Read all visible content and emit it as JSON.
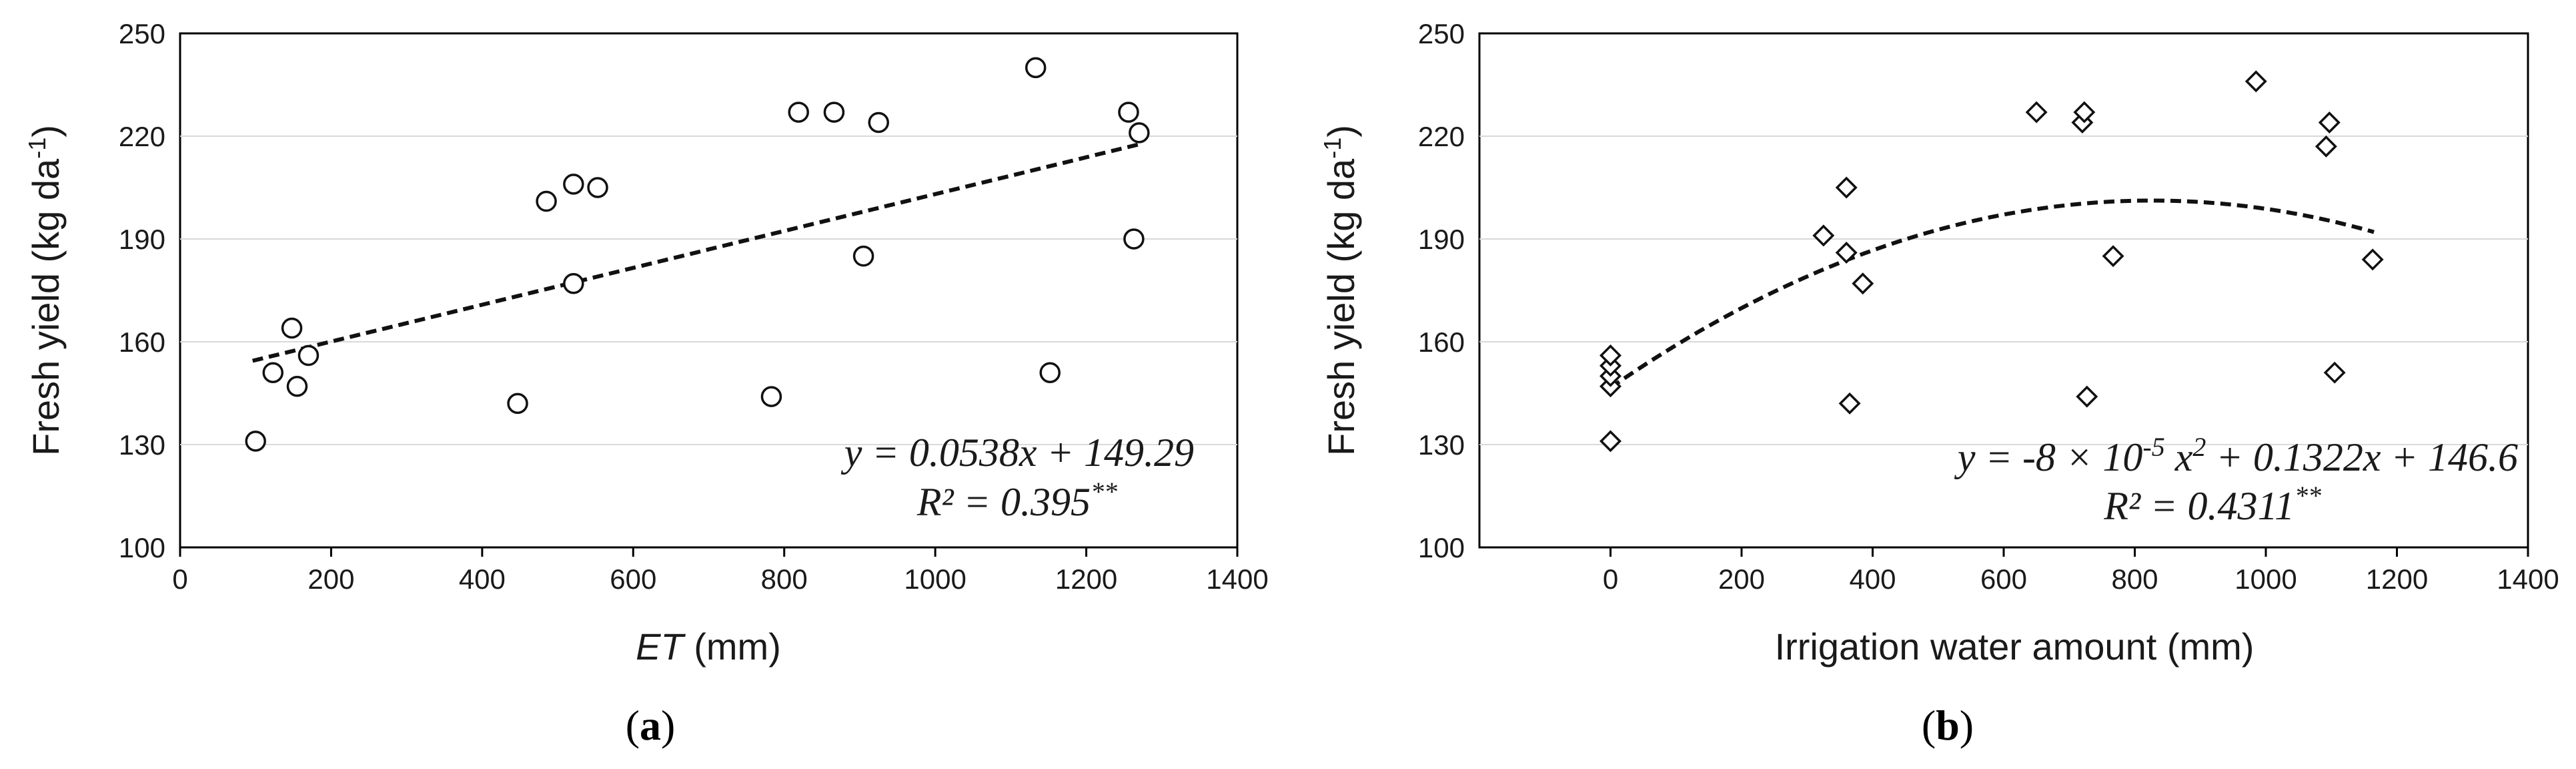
{
  "chart_data": [
    {
      "type": "scatter",
      "panel_label": "a",
      "xlabel": {
        "italic": "ET",
        "rest": " (mm)"
      },
      "ylabel": {
        "text": "Fresh yield (kg da",
        "sup": "-1",
        "end": ")"
      },
      "xlim": [
        0,
        1400
      ],
      "ylim": [
        100,
        250
      ],
      "xticks": [
        0,
        200,
        400,
        600,
        800,
        1000,
        1200,
        1400
      ],
      "yticks": [
        100,
        130,
        160,
        190,
        220,
        250
      ],
      "marker": "circle",
      "points": [
        [
          100,
          131
        ],
        [
          123,
          151
        ],
        [
          148,
          164
        ],
        [
          155,
          147
        ],
        [
          170,
          156
        ],
        [
          447,
          142
        ],
        [
          485,
          201
        ],
        [
          521,
          206
        ],
        [
          521,
          177
        ],
        [
          553,
          205
        ],
        [
          783,
          144
        ],
        [
          819,
          227
        ],
        [
          866,
          227
        ],
        [
          905,
          185
        ],
        [
          925,
          224
        ],
        [
          1133,
          240
        ],
        [
          1152,
          151
        ],
        [
          1256,
          227
        ],
        [
          1263,
          190
        ],
        [
          1270,
          221
        ]
      ],
      "fit": {
        "type": "linear",
        "a": 0.0538,
        "b": 149.29,
        "x_range": [
          96,
          1270
        ]
      },
      "equation": {
        "line1": "y = 0.0538x + 149.29",
        "line2": "R² = 0.395",
        "line2_sup": "**"
      }
    },
    {
      "type": "scatter",
      "panel_label": "b",
      "xlabel": {
        "italic": "",
        "rest": "Irrigation water amount (mm)"
      },
      "ylabel": {
        "text": "Fresh yield (kg da",
        "sup": "-1",
        "end": ")"
      },
      "xlim": [
        -200,
        1400
      ],
      "ylim": [
        100,
        250
      ],
      "xticks": [
        0,
        200,
        400,
        600,
        800,
        1000,
        1200,
        1400
      ],
      "yticks": [
        100,
        130,
        160,
        190,
        220,
        250
      ],
      "marker": "diamond",
      "points": [
        [
          0,
          131
        ],
        [
          0,
          147
        ],
        [
          0,
          150
        ],
        [
          0,
          153
        ],
        [
          0,
          156
        ],
        [
          325,
          191
        ],
        [
          360,
          205
        ],
        [
          360,
          186
        ],
        [
          365,
          142
        ],
        [
          385,
          177
        ],
        [
          650,
          227
        ],
        [
          720,
          224
        ],
        [
          723,
          227
        ],
        [
          727,
          144
        ],
        [
          767,
          185
        ],
        [
          985,
          236
        ],
        [
          1092,
          217
        ],
        [
          1097,
          224
        ],
        [
          1105,
          151
        ],
        [
          1163,
          184
        ]
      ],
      "fit": {
        "type": "quadratic",
        "c2": -8e-05,
        "c1": 0.1322,
        "c0": 146.6,
        "x_range": [
          0,
          1165
        ]
      },
      "equation": {
        "line1_a": "y = -8 × 10",
        "line1_sup": "-5",
        "line1_b": " x",
        "line1_sup2": "2",
        "line1_c": " + 0.1322x + 146.6",
        "line2": "R² = 0.4311",
        "line2_sup": "**"
      }
    }
  ]
}
